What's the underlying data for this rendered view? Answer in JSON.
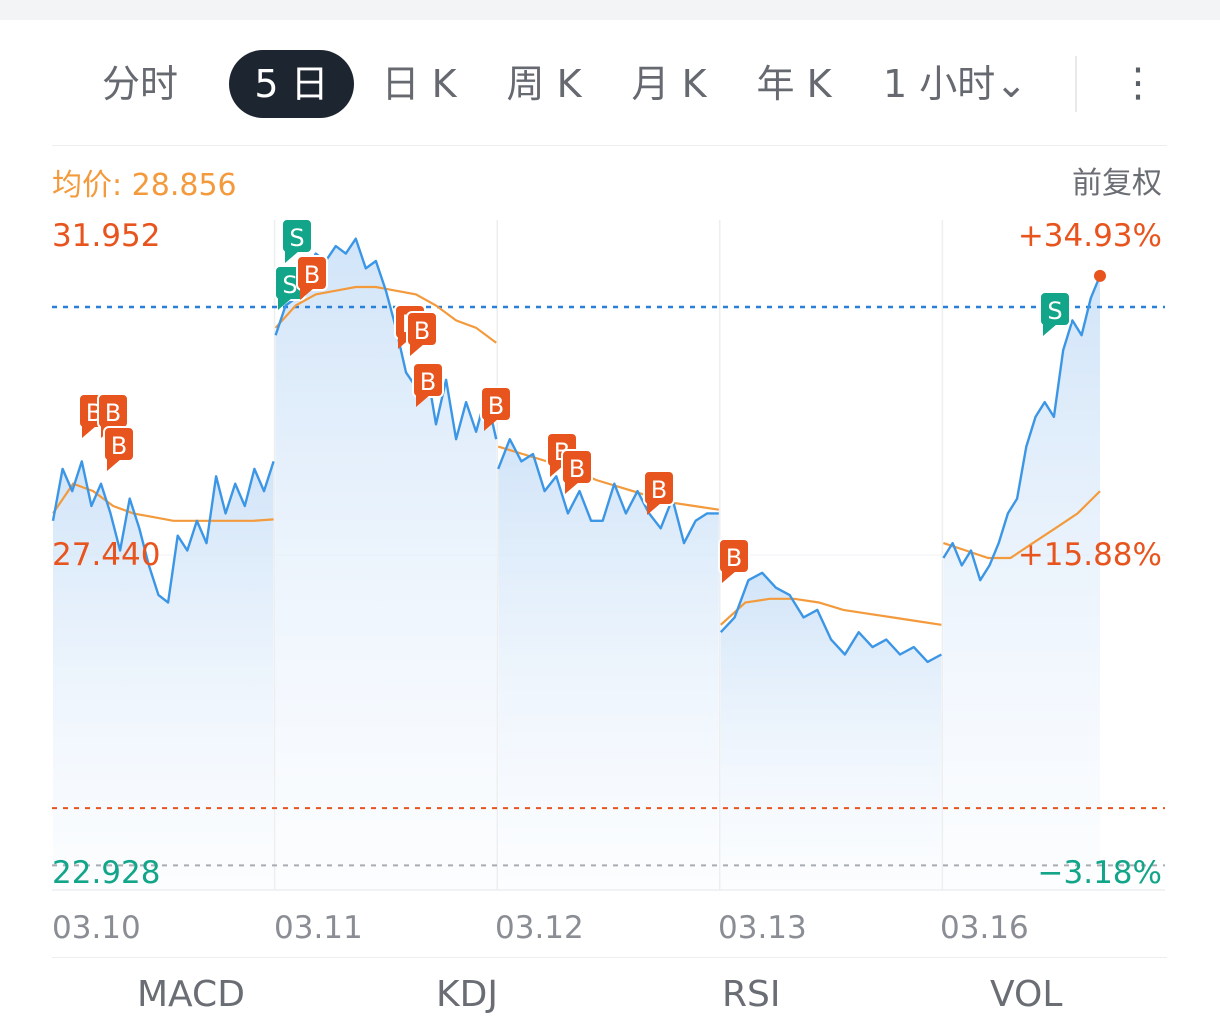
{
  "tabs": [
    {
      "label": "分时",
      "active": false
    },
    {
      "label": "5 日",
      "active": true
    },
    {
      "label": "日 K",
      "active": false
    },
    {
      "label": "周 K",
      "active": false
    },
    {
      "label": "月 K",
      "active": false
    },
    {
      "label": "年 K",
      "active": false
    },
    {
      "label": "1 小时⌄",
      "active": false
    }
  ],
  "more_icon": "⋮",
  "avg_price_label": "均价: 28.856",
  "adjust_label": "前复权",
  "colors": {
    "price_line": "#3c96e6",
    "avg_line": "#f39a3c",
    "up": "#e8541e",
    "down": "#12a589",
    "prev_close_line": "#2a7fd8"
  },
  "chart_data": {
    "type": "line",
    "ylim": [
      22.928,
      31.952
    ],
    "y_labels_left": {
      "top": "31.952",
      "mid": "27.440",
      "bottom": "22.928"
    },
    "y_labels_right": {
      "top": "+34.93%",
      "mid": "+15.88%",
      "bottom": "−3.18%"
    },
    "x_labels": [
      "03.10",
      "03.11",
      "03.12",
      "03.13",
      "03.16"
    ],
    "series": [
      {
        "days": [
          {
            "date": "03.10",
            "price": [
              27.9,
              28.6,
              28.3,
              28.7,
              28.1,
              28.4,
              28.0,
              27.5,
              28.2,
              27.8,
              27.3,
              26.9,
              26.8,
              27.7,
              27.5,
              27.9,
              27.6,
              28.5,
              28.0,
              28.4,
              28.1,
              28.6,
              28.3,
              28.7
            ],
            "avg": [
              28.0,
              28.4,
              28.3,
              28.1,
              28.0,
              27.95,
              27.9,
              27.9,
              27.9,
              27.9,
              27.9,
              27.92
            ]
          },
          {
            "date": "03.11",
            "price": [
              30.4,
              30.8,
              30.9,
              31.2,
              31.5,
              31.4,
              31.6,
              31.5,
              31.7,
              31.3,
              31.4,
              31.0,
              30.5,
              29.9,
              29.7,
              30.0,
              29.2,
              29.8,
              29.0,
              29.5,
              29.1,
              29.6,
              29.0
            ],
            "avg": [
              30.5,
              30.8,
              30.95,
              31.0,
              31.05,
              31.05,
              31.0,
              30.95,
              30.8,
              30.6,
              30.5,
              30.3
            ]
          },
          {
            "date": "03.12",
            "price": [
              28.6,
              29.0,
              28.7,
              28.8,
              28.3,
              28.5,
              28.0,
              28.3,
              27.9,
              27.9,
              28.4,
              28.0,
              28.3,
              28.0,
              27.8,
              28.2,
              27.6,
              27.9,
              28.0,
              28.0
            ],
            "avg": [
              28.9,
              28.8,
              28.7,
              28.6,
              28.45,
              28.35,
              28.25,
              28.15,
              28.1,
              28.05
            ]
          },
          {
            "date": "03.13",
            "price": [
              26.4,
              26.6,
              27.1,
              27.2,
              27.0,
              26.9,
              26.6,
              26.7,
              26.3,
              26.1,
              26.4,
              26.2,
              26.3,
              26.1,
              26.2,
              26.0,
              26.1
            ],
            "avg": [
              26.5,
              26.8,
              26.85,
              26.85,
              26.8,
              26.7,
              26.65,
              26.6,
              26.55,
              26.5
            ]
          },
          {
            "date": "03.16",
            "price": [
              27.4,
              27.6,
              27.3,
              27.5,
              27.1,
              27.3,
              27.6,
              28.0,
              28.2,
              28.9,
              29.3,
              29.5,
              29.3,
              30.2,
              30.6,
              30.4,
              30.9,
              31.2
            ],
            "avg": [
              27.6,
              27.5,
              27.4,
              27.4,
              27.6,
              27.8,
              28.0,
              28.3
            ]
          }
        ]
      }
    ],
    "reference_lines": [
      {
        "value": 30.78,
        "style": "dotted-blue"
      },
      {
        "value": 24.03,
        "style": "dotted-red"
      },
      {
        "value": 23.26,
        "style": "dotted-gray"
      }
    ],
    "trade_markers": [
      {
        "label": "B"
      },
      {
        "label": "B"
      },
      {
        "label": "B"
      },
      {
        "label": "S"
      },
      {
        "label": "S"
      },
      {
        "label": "B"
      },
      {
        "label": "B"
      },
      {
        "label": "B"
      },
      {
        "label": "B"
      },
      {
        "label": "B"
      },
      {
        "label": "B"
      },
      {
        "label": "B"
      },
      {
        "label": "B"
      },
      {
        "label": "B"
      },
      {
        "label": "S"
      }
    ]
  },
  "bottom_tabs": [
    "MACD",
    "KDJ",
    "RSI",
    "VOL"
  ]
}
